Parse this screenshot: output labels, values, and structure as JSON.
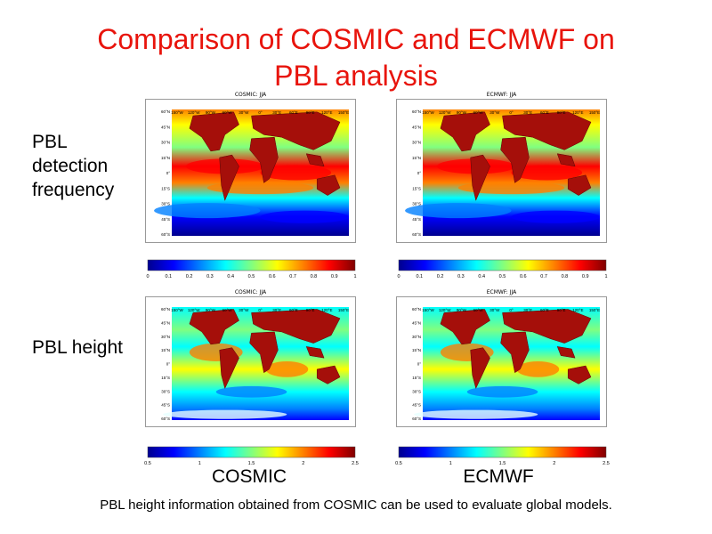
{
  "slide": {
    "title_line1": "Comparison of COSMIC and ECMWF on",
    "title_line2": "PBL analysis",
    "row_labels": {
      "frequency": [
        "PBL",
        "detection",
        "frequency"
      ],
      "height": "PBL height"
    },
    "dataset_labels": {
      "left": "COSMIC",
      "right": "ECMWF"
    },
    "caption": "PBL height information obtained from COSMIC can be used to evaluate global models."
  },
  "maps": {
    "cosmic_freq": {
      "title": "COSMIC: JJA"
    },
    "ecmwf_freq": {
      "title": "ECMWF: JJA"
    },
    "cosmic_height": {
      "title": "COSMIC: JJA"
    },
    "ecmwf_height": {
      "title": "ECMWF: JJA"
    },
    "lon_ticks": [
      "150°W",
      "120°W",
      "90°W",
      "60°W",
      "30°W",
      "0°",
      "30°E",
      "60°E",
      "90°E",
      "120°E",
      "150°E"
    ],
    "lat_ticks": [
      "60°N",
      "45°N",
      "30°N",
      "15°N",
      "0°",
      "15°S",
      "30°S",
      "45°S",
      "60°S"
    ]
  },
  "colorbars": {
    "frequency_ticks": [
      "0",
      "0.1",
      "0.2",
      "0.3",
      "0.4",
      "0.5",
      "0.6",
      "0.7",
      "0.8",
      "0.9",
      "1"
    ],
    "height_ticks": [
      "0.5",
      "1",
      "1.5",
      "2",
      "2.5"
    ]
  },
  "colors": {
    "title": "#e8140c",
    "land": "#a50f0a",
    "colormap": [
      "#00008f",
      "#0000ff",
      "#0080ff",
      "#00ffff",
      "#80ff80",
      "#ffff00",
      "#ff8000",
      "#ff0000",
      "#800000"
    ]
  }
}
